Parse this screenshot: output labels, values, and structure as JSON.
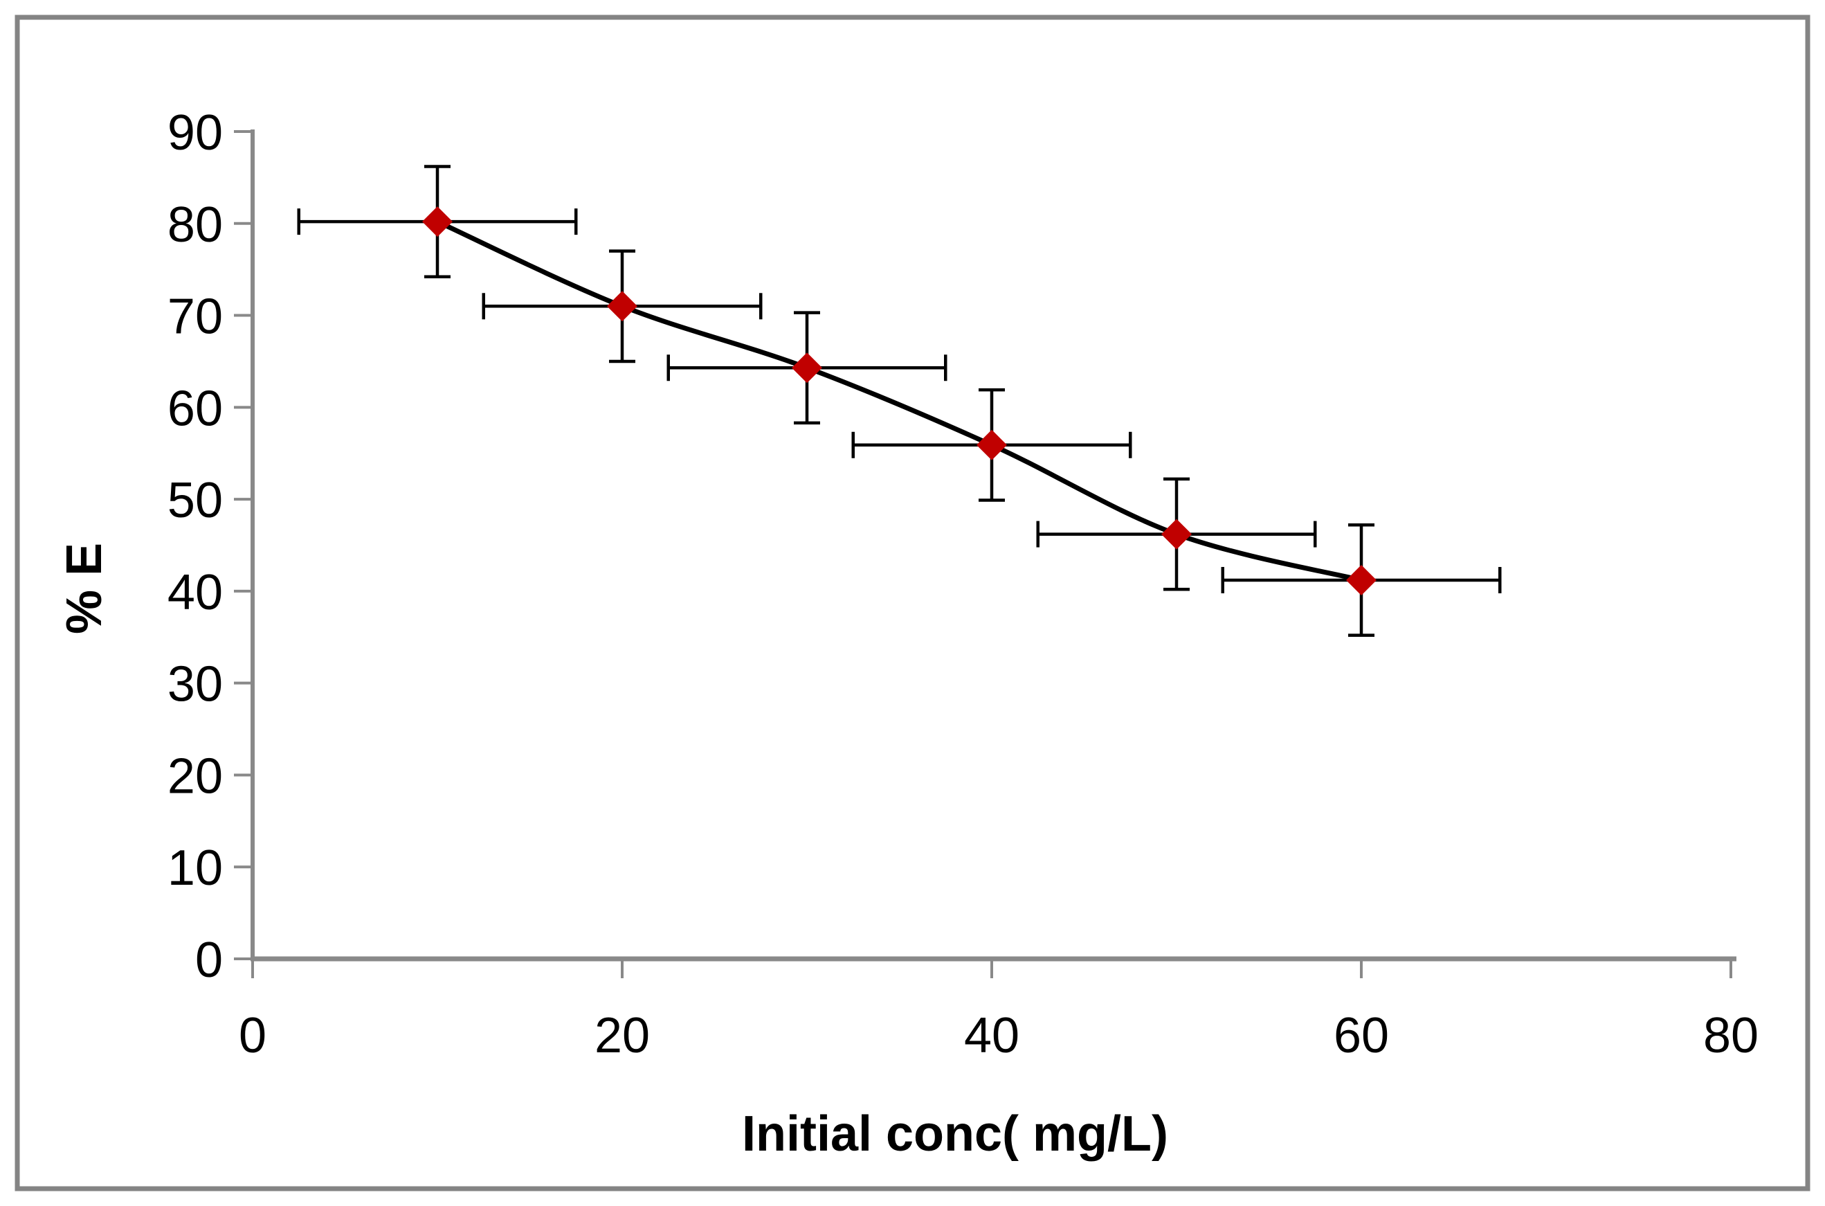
{
  "chart_data": {
    "type": "scatter",
    "title": "",
    "xlabel": "Initial conc( mg/L)",
    "ylabel": "% E",
    "x": [
      10,
      20,
      30,
      40,
      50,
      60
    ],
    "y": [
      80.2,
      71.0,
      64.3,
      55.9,
      46.2,
      41.2
    ],
    "x_error": 7.5,
    "y_error": 6,
    "xlim": [
      0,
      80
    ],
    "ylim": [
      0,
      90
    ],
    "x_ticks": [
      0,
      20,
      40,
      60,
      80
    ],
    "y_ticks": [
      0,
      10,
      20,
      30,
      40,
      50,
      60,
      70,
      80,
      90
    ],
    "grid": false,
    "legend": null,
    "smooth_line": true,
    "marker": "diamond",
    "colors": {
      "marker": "#C00000",
      "line": "#000000",
      "error_bar": "#000000",
      "axis": "#898989",
      "chart_border": "#848484",
      "text": "#000000",
      "background": "#FFFFFF"
    }
  }
}
